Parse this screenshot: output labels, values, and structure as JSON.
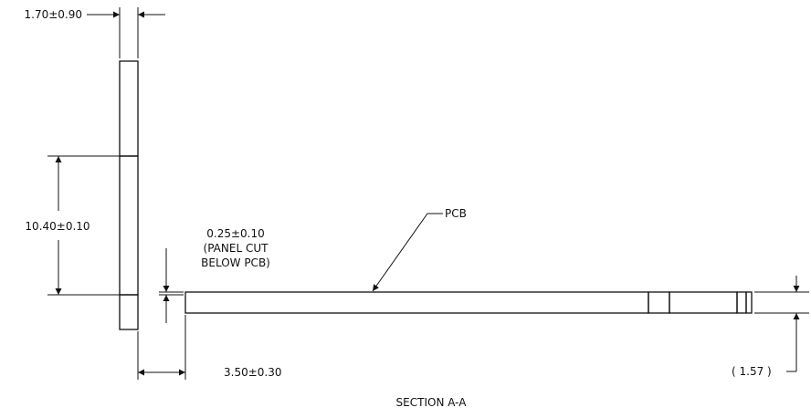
{
  "dimensions": {
    "panel_thickness": "1.70±0.90",
    "vertical_offset": "10.40±0.10",
    "panel_cut_value": "0.25±0.10",
    "panel_cut_note_1": "(PANEL CUT",
    "panel_cut_note_2": "BELOW PCB)",
    "horizontal_gap": "3.50±0.30",
    "pcb_thickness": "( 1.57 )"
  },
  "labels": {
    "pcb": "PCB",
    "section_title": "SECTION A-A"
  }
}
